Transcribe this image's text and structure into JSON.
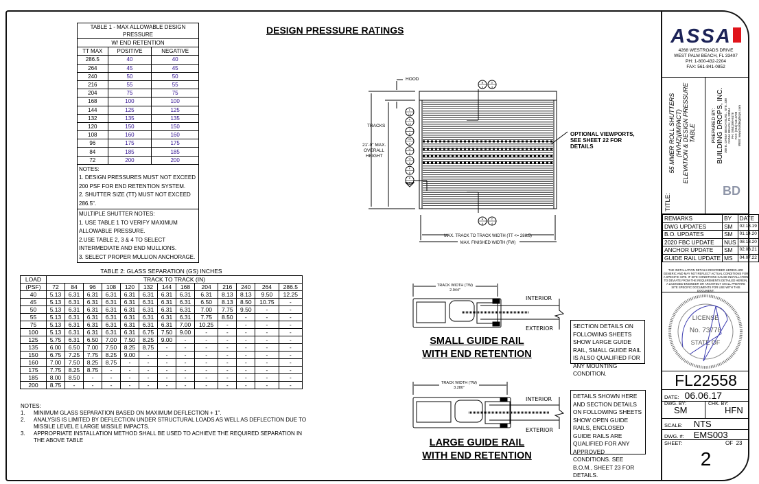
{
  "page_title": "DESIGN PRESSURE RATINGS",
  "table1": {
    "title": "TABLE 1 - MAX ALLOWABLE DESIGN PRESSURE",
    "group": "W/ END RETENTION",
    "headers": [
      "TT MAX",
      "POSITIVE",
      "NEGATIVE"
    ],
    "rows": [
      [
        "286.5",
        "40",
        "40"
      ],
      [
        "264",
        "45",
        "45"
      ],
      [
        "240",
        "50",
        "50"
      ],
      [
        "216",
        "55",
        "55"
      ],
      [
        "204",
        "75",
        "75"
      ],
      [
        "168",
        "100",
        "100"
      ],
      [
        "144",
        "125",
        "125"
      ],
      [
        "132",
        "135",
        "135"
      ],
      [
        "120",
        "150",
        "150"
      ],
      [
        "108",
        "160",
        "160"
      ],
      [
        "96",
        "175",
        "175"
      ],
      [
        "84",
        "185",
        "185"
      ],
      [
        "72",
        "200",
        "200"
      ]
    ],
    "notes": [
      "NOTES:",
      "1. DESIGN PRESSURES MUST NOT EXCEED 200 PSF FOR END RETENTION SYSTEM.",
      "2. SHUTTER SIZE (TT) MUST NOT EXCEED 286.5\"."
    ],
    "multi_notes": [
      "MULTIPLE SHUTTER NOTES:",
      "1. USE TABLE 1 TO VERIFY MAXIMUM ALLOWABLE PRESSURE.",
      "2.USE TABLE 2, 3 & 4 TO SELECT INTERMEDIATE AND END MULLIONS.",
      "3. SELECT PROPER MULLION ANCHORAGE."
    ]
  },
  "table2": {
    "title": "TABLE 2: GLASS SEPARATION (GS) INCHES",
    "load_label": "LOAD",
    "load_unit": "(PSF)",
    "track_label": "TRACK TO TRACK (IN)",
    "columns": [
      "72",
      "84",
      "96",
      "108",
      "120",
      "132",
      "144",
      "168",
      "204",
      "216",
      "240",
      "264",
      "286.5"
    ],
    "rows": [
      [
        "40",
        "5.13",
        "6.31",
        "6.31",
        "6.31",
        "6.31",
        "6.31",
        "6.31",
        "6.31",
        "6.31",
        "8.13",
        "8.13",
        "9.50",
        "12.25"
      ],
      [
        "45",
        "5.13",
        "6.31",
        "6.31",
        "6.31",
        "6.31",
        "6.31",
        "6.31",
        "6.31",
        "6.50",
        "8.13",
        "8.50",
        "10.75",
        "-"
      ],
      [
        "50",
        "5.13",
        "6.31",
        "6.31",
        "6.31",
        "6.31",
        "6.31",
        "6.31",
        "6.31",
        "7.00",
        "7.75",
        "9.50",
        "-",
        "-"
      ],
      [
        "55",
        "5.13",
        "6.31",
        "6.31",
        "6.31",
        "6.31",
        "6.31",
        "6.31",
        "6.31",
        "7.75",
        "8.50",
        "-",
        "-",
        "-"
      ],
      [
        "75",
        "5.13",
        "6.31",
        "6.31",
        "6.31",
        "6.31",
        "6.31",
        "6.31",
        "7.00",
        "10.25",
        "-",
        "-",
        "-",
        "-"
      ],
      [
        "100",
        "5.13",
        "6.31",
        "6.31",
        "6.31",
        "6.31",
        "6.75",
        "7.50",
        "9.00",
        "-",
        "-",
        "-",
        "-",
        "-"
      ],
      [
        "125",
        "5.75",
        "6.31",
        "6.50",
        "7.00",
        "7.50",
        "8.25",
        "9.00",
        "-",
        "-",
        "-",
        "-",
        "-",
        "-"
      ],
      [
        "135",
        "6.00",
        "6.50",
        "7.00",
        "7.50",
        "8.25",
        "8.75",
        "-",
        "-",
        "-",
        "-",
        "-",
        "-",
        "-"
      ],
      [
        "150",
        "6.75",
        "7.25",
        "7.75",
        "8.25",
        "9.00",
        "-",
        "-",
        "-",
        "-",
        "-",
        "-",
        "-",
        "-"
      ],
      [
        "160",
        "7.00",
        "7.50",
        "8.25",
        "8.75",
        "-",
        "-",
        "-",
        "-",
        "-",
        "-",
        "-",
        "-",
        "-"
      ],
      [
        "175",
        "7.75",
        "8.25",
        "8.75",
        "-",
        "-",
        "-",
        "-",
        "-",
        "-",
        "-",
        "-",
        "-",
        "-"
      ],
      [
        "185",
        "8.00",
        "8.50",
        "-",
        "-",
        "-",
        "-",
        "-",
        "-",
        "-",
        "-",
        "-",
        "-",
        "-"
      ],
      [
        "200",
        "8.75",
        "-",
        "-",
        "-",
        "-",
        "-",
        "-",
        "-",
        "-",
        "-",
        "-",
        "-",
        "-"
      ]
    ],
    "notes_title": "NOTES:",
    "notes": [
      [
        "1.",
        "MINIMUM GLASS SEPARATION BASED ON MAXIMUM DEFLECTION + 1\"."
      ],
      [
        "2.",
        "ANALYSIS IS LIMITED BY DEFLECTION UNDER STRUCTURAL LOADS AS WELL AS DEFLECTION DUE TO MISSILE LEVEL E LARGE MISSILE IMPACTS."
      ],
      [
        "3.",
        "APPROPRIATE INSTALLATION METHOD SHALL BE USED TO ACHIEVE THE REQUIRED SEPARATION IN THE ABOVE TABLE"
      ]
    ]
  },
  "elevation": {
    "hood": "HOOD",
    "tracks": "TRACKS",
    "height": [
      "21'-0\" MAX.",
      "OVERALL",
      "HEIGHT"
    ],
    "viewports": [
      "OPTIONAL VIEWPORTS,",
      "SEE SHEET 22 FOR",
      "DETAILS"
    ],
    "tt_width": "MAX. TRACK TO TRACK WIDTH (TT <= 286.5)",
    "fw_width": "MAX. FINISHED WIDTH (FW)",
    "side_tags": [
      [
        "L",
        "14"
      ],
      [
        "K",
        "12"
      ],
      [
        "J",
        "9"
      ],
      [
        "H1",
        "8"
      ],
      [
        "H",
        "8"
      ],
      [
        "G",
        "8"
      ],
      [
        "F",
        "6"
      ],
      [
        "E",
        "5"
      ]
    ],
    "top_tags": [
      [
        "B",
        "4"
      ],
      [
        "D",
        "4"
      ]
    ],
    "bottom_tags": [
      [
        "A",
        "4"
      ],
      [
        "C",
        "4"
      ]
    ]
  },
  "small_rail": {
    "tw_label": "TRACK WIDTH (TW)",
    "tw_value": "2.944\"",
    "interior": "INTERIOR",
    "exterior": "EXTERIOR",
    "title": [
      "SMALL GUIDE RAIL",
      "WITH END RETENTION"
    ],
    "note": "SECTION DETAILS ON FOLLOWING SHEETS SHOW LARGE GUIDE RAIL, SMALL GUIDE RAIL IS ALSO QUALIFIED FOR ANY MOUNTING CONDITION."
  },
  "large_rail": {
    "tw_label": "TRACK WIDTH (TW)",
    "tw_value": "3.280\"",
    "interior": "INTERIOR",
    "exterior": "EXTERIOR",
    "title": [
      "LARGE GUIDE RAIL",
      "WITH END RETENTION"
    ],
    "note": "DETAILS SHOWN HERE AND SECTION DETAILS ON FOLLOWING SHEETS SHOW OPEN GUIDE RAILS, ENCLOSED GUIDE RAILS ARE QUALIFIED FOR ANY APPROVED CONDITIONS. SEE B.O.M., SHEET 23 FOR DETAILS."
  },
  "title_block": {
    "logo": "ASSA",
    "address": [
      "4268 WESTROADS DRIVE",
      "WEST PALM BEACH, FL 33407",
      "PH: 1-800-432-2204",
      "FAX: 561-841-0852"
    ],
    "brand_colors": {
      "logo_navy": "#1c2357",
      "logo_red": "#e0141b"
    },
    "title_label": "TITLE:",
    "title_lines": [
      "55 MMER ROLL SHUTTERS",
      "(HVHZ)(IMPACT)",
      "ELEVATION & DESIGN PRESSURE",
      "TABLE"
    ],
    "prepared_by": "PREPARED BY:",
    "company": "BUILDING DROPS, INC.",
    "company_lines": [
      "308 E. DANIA BEACH BLVD., STE. 338",
      "DANIA BEACH, FL 33004",
      "PH: (954)399-8478",
      "FAX: (954)744-4738",
      "WEB: www.buildingdrops.com"
    ],
    "company_logo": "BD BUILDING DROPS",
    "remarks_headers": [
      "REMARKS",
      "BY",
      "DATE"
    ],
    "remarks": [
      [
        "DWG UPDATES",
        "SM",
        "02.18.19"
      ],
      [
        "B.O. UPDATES",
        "SM",
        "01.14.20"
      ],
      [
        "2020 FBC UPDATE",
        "NUS",
        "08.18.20"
      ],
      [
        "ANCHOR UPDATE",
        "SM",
        "02.08.21"
      ],
      [
        "GUIDE RAIL UPDATE",
        "MS",
        "04.07.22"
      ]
    ],
    "disclaimer": "THE INSTALLATION DETAILS DESCRIBED HEREIN ARE GENERIC AND MAY NOT REFLECT ACTUAL CONDITIONS FOR A SPECIFIC SITE. IF SITE CONDITIONS CAUSE INSTALLATION TO DEVIATE FROM THE REQUIREMENTS DETAILED HEREIN, A LICENSED ENGINEER OR ARCHITECT SHALL PREPARE SITE SPECIFIC DOCUMENTS FOR USE WITH THIS DOCUMENT.",
    "seal": "HERMES F. NORERO LICENSE No. 73778 STATE OF FLORIDA PROFESSIONAL ENGINEER",
    "approval": "FL22558",
    "date_label": "DATE:",
    "date": "06.06.17",
    "dwg_by_label": "DWG. BY:",
    "dwg_by": "SM",
    "chk_by_label": "CHK. BY:",
    "chk_by": "HFN",
    "scale_label": "SCALE:",
    "scale": "NTS",
    "dwg_no_label": "DWG. #:",
    "dwg_no": "EMS003",
    "sheet_label": "SHEET:",
    "of_label": "OF",
    "of_total": "23",
    "sheet": "2"
  }
}
